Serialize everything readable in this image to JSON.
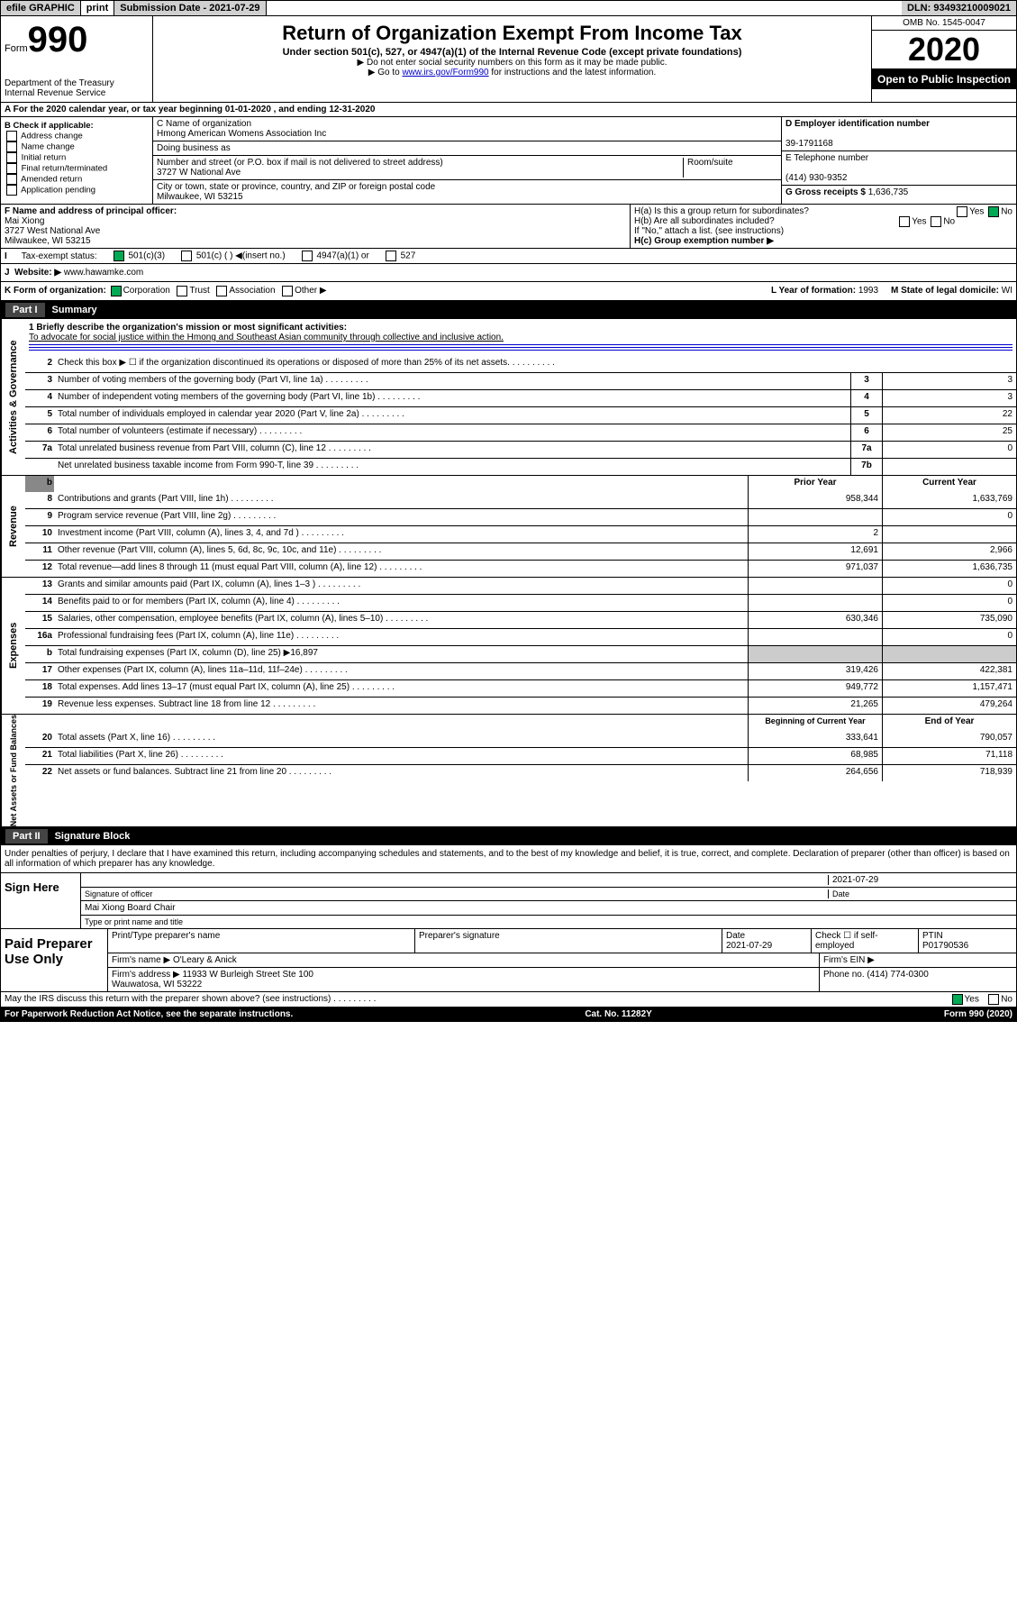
{
  "top": {
    "efile": "efile GRAPHIC",
    "print": "print",
    "sub_date": "Submission Date - 2021-07-29",
    "dln": "DLN: 93493210009021"
  },
  "header": {
    "form_prefix": "Form",
    "form_num": "990",
    "title": "Return of Organization Exempt From Income Tax",
    "subtitle": "Under section 501(c), 527, or 4947(a)(1) of the Internal Revenue Code (except private foundations)",
    "note1": "Do not enter social security numbers on this form as it may be made public.",
    "note2_pre": "Go to ",
    "note2_link": "www.irs.gov/Form990",
    "note2_post": " for instructions and the latest information.",
    "dept": "Department of the Treasury\nInternal Revenue Service",
    "omb": "OMB No. 1545-0047",
    "year": "2020",
    "open": "Open to Public Inspection"
  },
  "period": "A For the 2020 calendar year, or tax year beginning 01-01-2020    , and ending 12-31-2020",
  "boxB": {
    "label": "B Check if applicable:",
    "opts": [
      "Address change",
      "Name change",
      "Initial return",
      "Final return/terminated",
      "Amended return",
      "Application pending"
    ]
  },
  "boxC": {
    "label": "C Name of organization",
    "name": "Hmong American Womens Association Inc",
    "dba_label": "Doing business as",
    "addr_label": "Number and street (or P.O. box if mail is not delivered to street address)",
    "room_label": "Room/suite",
    "addr": "3727 W National Ave",
    "city_label": "City or town, state or province, country, and ZIP or foreign postal code",
    "city": "Milwaukee, WI  53215"
  },
  "boxD": {
    "label": "D Employer identification number",
    "val": "39-1791168"
  },
  "boxE": {
    "label": "E Telephone number",
    "val": "(414) 930-9352"
  },
  "boxG": {
    "label": "G Gross receipts $",
    "val": "1,636,735"
  },
  "boxF": {
    "label": "F  Name and address of principal officer:",
    "name": "Mai Xiong",
    "addr": "3727 West National Ave\nMilwaukee, WI  53215"
  },
  "boxH": {
    "a": "H(a)  Is this a group return for subordinates?",
    "a_no": "No",
    "b": "H(b)  Are all subordinates included?",
    "b_note": "If \"No,\" attach a list. (see instructions)",
    "c": "H(c)  Group exemption number ▶"
  },
  "taxI": {
    "label": "Tax-exempt status:",
    "c3": "501(c)(3)",
    "c": "501(c) (  ) ◀(insert no.)",
    "a1": "4947(a)(1) or",
    "s527": "527"
  },
  "boxJ": {
    "label": "Website: ▶",
    "val": "www.hawamke.com"
  },
  "boxK": {
    "label": "K Form of organization:",
    "corp": "Corporation",
    "trust": "Trust",
    "assoc": "Association",
    "other": "Other ▶"
  },
  "boxL": {
    "label": "L Year of formation:",
    "val": "1993"
  },
  "boxM": {
    "label": "M State of legal domicile:",
    "val": "WI"
  },
  "part1": {
    "tab": "Part I",
    "title": "Summary"
  },
  "mission": {
    "q": "1  Briefly describe the organization's mission or most significant activities:",
    "text": "To advocate for social justice within the Hmong and Southeast Asian community through collective and inclusive action."
  },
  "lines_gov": [
    {
      "n": "2",
      "d": "Check this box ▶ ☐  if the organization discontinued its operations or disposed of more than 25% of its net assets."
    },
    {
      "n": "3",
      "d": "Number of voting members of the governing body (Part VI, line 1a)",
      "box": "3",
      "val": "3"
    },
    {
      "n": "4",
      "d": "Number of independent voting members of the governing body (Part VI, line 1b)",
      "box": "4",
      "val": "3"
    },
    {
      "n": "5",
      "d": "Total number of individuals employed in calendar year 2020 (Part V, line 2a)",
      "box": "5",
      "val": "22"
    },
    {
      "n": "6",
      "d": "Total number of volunteers (estimate if necessary)",
      "box": "6",
      "val": "25"
    },
    {
      "n": "7a",
      "d": "Total unrelated business revenue from Part VIII, column (C), line 12",
      "box": "7a",
      "val": "0"
    },
    {
      "n": "",
      "d": "Net unrelated business taxable income from Form 990-T, line 39",
      "box": "7b",
      "val": ""
    }
  ],
  "rev_header": {
    "prior": "Prior Year",
    "curr": "Current Year"
  },
  "lines_rev": [
    {
      "n": "8",
      "d": "Contributions and grants (Part VIII, line 1h)",
      "p": "958,344",
      "c": "1,633,769"
    },
    {
      "n": "9",
      "d": "Program service revenue (Part VIII, line 2g)",
      "p": "",
      "c": "0"
    },
    {
      "n": "10",
      "d": "Investment income (Part VIII, column (A), lines 3, 4, and 7d )",
      "p": "2",
      "c": ""
    },
    {
      "n": "11",
      "d": "Other revenue (Part VIII, column (A), lines 5, 6d, 8c, 9c, 10c, and 11e)",
      "p": "12,691",
      "c": "2,966"
    },
    {
      "n": "12",
      "d": "Total revenue—add lines 8 through 11 (must equal Part VIII, column (A), line 12)",
      "p": "971,037",
      "c": "1,636,735"
    }
  ],
  "lines_exp": [
    {
      "n": "13",
      "d": "Grants and similar amounts paid (Part IX, column (A), lines 1–3 )",
      "p": "",
      "c": "0"
    },
    {
      "n": "14",
      "d": "Benefits paid to or for members (Part IX, column (A), line 4)",
      "p": "",
      "c": "0"
    },
    {
      "n": "15",
      "d": "Salaries, other compensation, employee benefits (Part IX, column (A), lines 5–10)",
      "p": "630,346",
      "c": "735,090"
    },
    {
      "n": "16a",
      "d": "Professional fundraising fees (Part IX, column (A), line 11e)",
      "p": "",
      "c": "0"
    },
    {
      "n": "b",
      "d": "Total fundraising expenses (Part IX, column (D), line 25) ▶16,897",
      "p": "",
      "c": "",
      "noval": true
    },
    {
      "n": "17",
      "d": "Other expenses (Part IX, column (A), lines 11a–11d, 11f–24e)",
      "p": "319,426",
      "c": "422,381"
    },
    {
      "n": "18",
      "d": "Total expenses. Add lines 13–17 (must equal Part IX, column (A), line 25)",
      "p": "949,772",
      "c": "1,157,471"
    },
    {
      "n": "19",
      "d": "Revenue less expenses. Subtract line 18 from line 12",
      "p": "21,265",
      "c": "479,264"
    }
  ],
  "na_header": {
    "prior": "Beginning of Current Year",
    "curr": "End of Year"
  },
  "lines_na": [
    {
      "n": "20",
      "d": "Total assets (Part X, line 16)",
      "p": "333,641",
      "c": "790,057"
    },
    {
      "n": "21",
      "d": "Total liabilities (Part X, line 26)",
      "p": "68,985",
      "c": "71,118"
    },
    {
      "n": "22",
      "d": "Net assets or fund balances. Subtract line 21 from line 20",
      "p": "264,656",
      "c": "718,939"
    }
  ],
  "part2": {
    "tab": "Part II",
    "title": "Signature Block"
  },
  "perjury": "Under penalties of perjury, I declare that I have examined this return, including accompanying schedules and statements, and to the best of my knowledge and belief, it is true, correct, and complete. Declaration of preparer (other than officer) is based on all information of which preparer has any knowledge.",
  "sign": {
    "label": "Sign Here",
    "sig_date": "2021-07-29",
    "sig_of": "Signature of officer",
    "date_lbl": "Date",
    "name": "Mai Xiong  Board Chair",
    "name_lbl": "Type or print name and title"
  },
  "paid": {
    "label": "Paid Preparer Use Only",
    "h1": "Print/Type preparer's name",
    "h2": "Preparer's signature",
    "h3": "Date",
    "h4": "Check ☐ if self-employed",
    "h5": "PTIN",
    "date": "2021-07-29",
    "ptin": "P01790536",
    "firm_lbl": "Firm's name   ▶",
    "firm": "O'Leary & Anick",
    "ein_lbl": "Firm's EIN ▶",
    "addr_lbl": "Firm's address ▶",
    "addr": "11933 W Burleigh Street Ste 100\nWauwatosa, WI  53222",
    "phone_lbl": "Phone no.",
    "phone": "(414) 774-0300"
  },
  "discuss": "May the IRS discuss this return with the preparer shown above? (see instructions)",
  "discuss_yes": "Yes",
  "discuss_no": "No",
  "footer": {
    "left": "For Paperwork Reduction Act Notice, see the separate instructions.",
    "mid": "Cat. No. 11282Y",
    "right": "Form 990 (2020)"
  },
  "side_labels": {
    "gov": "Activities & Governance",
    "rev": "Revenue",
    "exp": "Expenses",
    "na": "Net Assets or Fund Balances"
  }
}
